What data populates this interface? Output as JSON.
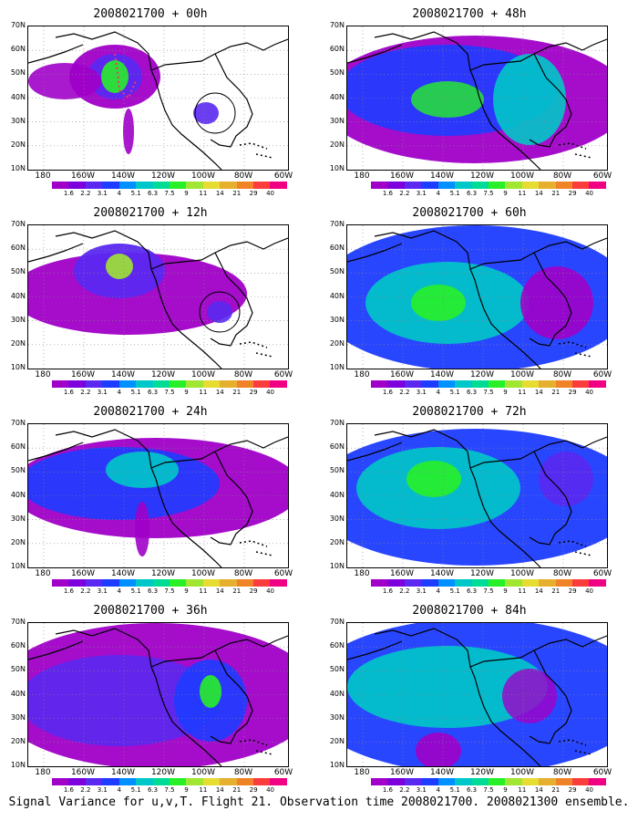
{
  "panels": [
    {
      "title": "2008021700 + 00h",
      "pattern": "p00"
    },
    {
      "title": "2008021700 + 48h",
      "pattern": "p48"
    },
    {
      "title": "2008021700 + 12h",
      "pattern": "p12"
    },
    {
      "title": "2008021700 + 60h",
      "pattern": "p60"
    },
    {
      "title": "2008021700 + 24h",
      "pattern": "p24"
    },
    {
      "title": "2008021700 + 72h",
      "pattern": "p72"
    },
    {
      "title": "2008021700 + 36h",
      "pattern": "p36"
    },
    {
      "title": "2008021700 + 84h",
      "pattern": "p84"
    }
  ],
  "lat_labels": [
    "70N",
    "60N",
    "50N",
    "40N",
    "30N",
    "20N",
    "10N"
  ],
  "lon_labels": [
    "180",
    "160W",
    "140W",
    "120W",
    "100W",
    "80W",
    "60W"
  ],
  "colorbar_labels": [
    "1.6",
    "2.2",
    "3.1",
    "4",
    "5.1",
    "6.3",
    "7.5",
    "9",
    "11",
    "14",
    "21",
    "29",
    "40"
  ],
  "colorbar_colors": [
    "#a000c8",
    "#7d00dc",
    "#5a28f0",
    "#1e3cff",
    "#0090ff",
    "#00c8c8",
    "#00dc96",
    "#28f028",
    "#a0e632",
    "#e6dc32",
    "#e6af2d",
    "#f08228",
    "#fa3c3c",
    "#f00082"
  ],
  "caption": "Signal Variance for u,v,T. Flight 21. Observation time 2008021700. 2008021300 ensemble."
}
